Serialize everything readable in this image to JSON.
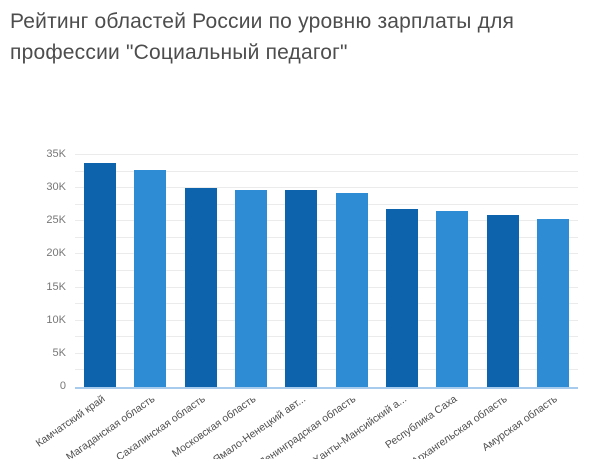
{
  "title": "Рейтинг областей России по уровню зарплаты для профессии \"Социальный педагог\"",
  "chart_data": {
    "type": "bar",
    "title": "Рейтинг областей России по уровню зарплаты для профессии \"Социальный педагог\"",
    "categories": [
      "Камчатский край",
      "Магаданская область",
      "Сахалинская область",
      "Московская область",
      "Ямало-Ненецкий авт...",
      "Ленинградская область",
      "Ханты-Мансийский а...",
      "Республика Саха",
      "Архангельская область",
      "Амурская область"
    ],
    "values": [
      33800,
      32800,
      30000,
      29700,
      29700,
      29300,
      26900,
      26600,
      25900,
      25300
    ],
    "xlabel": "",
    "ylabel": "",
    "ylim": [
      0,
      35000
    ],
    "ytick_step": 5000,
    "ytick_labels": [
      "0",
      "5K",
      "10K",
      "15K",
      "20K",
      "25K",
      "30K",
      "35K"
    ],
    "gridline_step": 2500,
    "grid": true,
    "legend": false,
    "bar_color_odd": "#0d64ad",
    "bar_color_even": "#2e8cd5",
    "gridline_color": "#ebebeb",
    "axis_line_color": "#a6cbec",
    "tick_label_color": "#777777",
    "category_label_color": "#4f4f4f"
  }
}
